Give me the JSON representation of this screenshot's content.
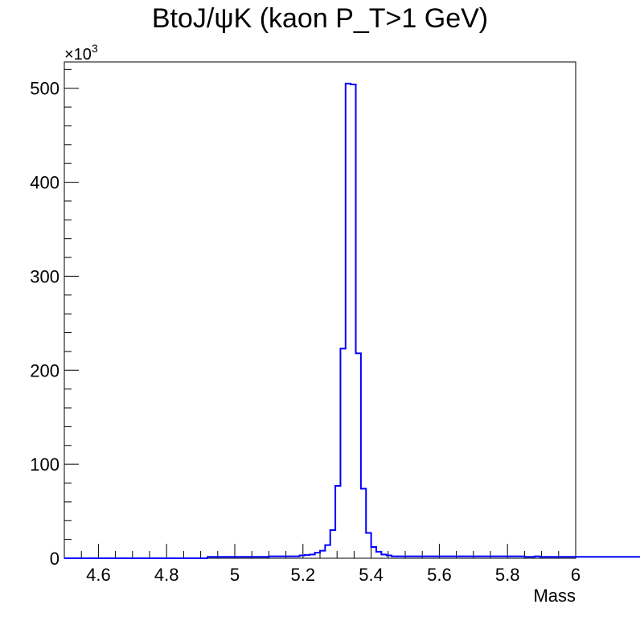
{
  "chart_data": {
    "type": "histogram",
    "title": "BtoJ/ψK (kaon P_T>1 GeV)",
    "xlabel": "Mass",
    "ylabel": "",
    "y_multiplier": {
      "base": "×10",
      "exponent": "3"
    },
    "xlim": [
      4.5,
      6.0
    ],
    "ylim": [
      0,
      528
    ],
    "grid": false,
    "x_ticks": [
      4.6,
      4.8,
      5.0,
      5.2,
      5.4,
      5.6,
      5.8,
      6.0
    ],
    "x_tick_labels": [
      "4.6",
      "4.8",
      "5",
      "5.2",
      "5.4",
      "5.6",
      "5.8",
      "6"
    ],
    "y_ticks": [
      0,
      100,
      200,
      300,
      400,
      500
    ],
    "y_tick_labels": [
      "0",
      "100",
      "200",
      "300",
      "400",
      "500"
    ],
    "bin_width": 0.015,
    "bin_start": 4.5,
    "values": [
      0,
      0,
      0,
      0,
      0,
      0,
      0,
      0,
      0,
      0,
      0,
      0,
      0,
      0,
      0,
      0,
      0,
      0,
      0,
      0,
      0,
      0,
      0,
      0,
      0,
      0,
      0,
      0,
      1.5,
      1.5,
      1.5,
      1.5,
      1.5,
      1.5,
      1.5,
      1.5,
      1.5,
      1.5,
      1.5,
      1.5,
      2,
      2,
      2,
      2,
      2,
      2,
      3,
      3.5,
      4,
      6,
      8,
      14,
      30,
      77,
      223,
      505,
      504,
      218,
      74,
      27,
      12,
      7,
      4,
      3,
      2,
      2,
      2,
      2,
      2,
      2,
      2,
      2,
      2,
      2,
      2,
      2,
      2,
      2,
      2,
      2,
      2,
      2,
      2,
      2,
      2,
      2,
      2,
      2,
      2,
      2,
      1.5,
      1.5,
      2,
      1.5,
      1.5,
      1.5,
      1.5,
      1.5,
      1.5,
      1.5,
      1.5,
      1.5,
      1.5,
      1.5,
      1.5,
      1.5,
      1.5,
      1.5,
      1.5,
      1.5,
      1.5,
      1.5,
      1.5,
      1.5,
      1.5,
      1.5,
      1.5,
      1.5
    ],
    "series": [
      {
        "values_key": "values",
        "color": "#0000ff"
      }
    ]
  }
}
